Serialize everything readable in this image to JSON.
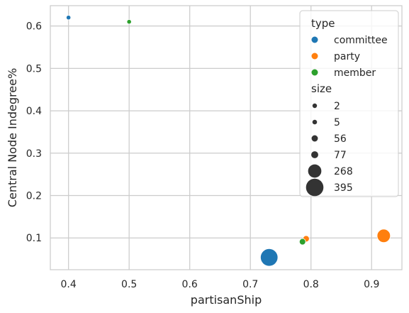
{
  "chart_data": {
    "type": "scatter",
    "xlabel": "partisanShip",
    "ylabel": "Central Node Indegree%",
    "xlim": [
      0.37,
      0.95
    ],
    "ylim": [
      0.025,
      0.648
    ],
    "xticks": [
      0.4,
      0.5,
      0.6,
      0.7,
      0.8,
      0.9
    ],
    "xtick_labels": [
      "0.4",
      "0.5",
      "0.6",
      "0.7",
      "0.8",
      "0.9"
    ],
    "yticks": [
      0.1,
      0.2,
      0.3,
      0.4,
      0.5,
      0.6
    ],
    "ytick_labels": [
      "0.1",
      "0.2",
      "0.3",
      "0.4",
      "0.5",
      "0.6"
    ],
    "grid": true,
    "legend_placement": "top-right",
    "hue_title": "type",
    "size_title": "size",
    "hue_legend": [
      {
        "label": "committee",
        "color": "#1f77b4"
      },
      {
        "label": "party",
        "color": "#ff7f0e"
      },
      {
        "label": "member",
        "color": "#2ca02c"
      }
    ],
    "size_legend": [
      {
        "label": "2",
        "size": 2
      },
      {
        "label": "5",
        "size": 5
      },
      {
        "label": "56",
        "size": 56
      },
      {
        "label": "77",
        "size": 77
      },
      {
        "label": "268",
        "size": 268
      },
      {
        "label": "395",
        "size": 395
      }
    ],
    "points": [
      {
        "x": 0.4,
        "y": 0.62,
        "type": "committee",
        "size": 2
      },
      {
        "x": 0.5,
        "y": 0.61,
        "type": "member",
        "size": 2
      },
      {
        "x": 0.731,
        "y": 0.054,
        "type": "committee",
        "size": 395
      },
      {
        "x": 0.792,
        "y": 0.098,
        "type": "party",
        "size": 56
      },
      {
        "x": 0.786,
        "y": 0.091,
        "type": "member",
        "size": 56
      },
      {
        "x": 0.92,
        "y": 0.105,
        "type": "party",
        "size": 268
      }
    ]
  }
}
